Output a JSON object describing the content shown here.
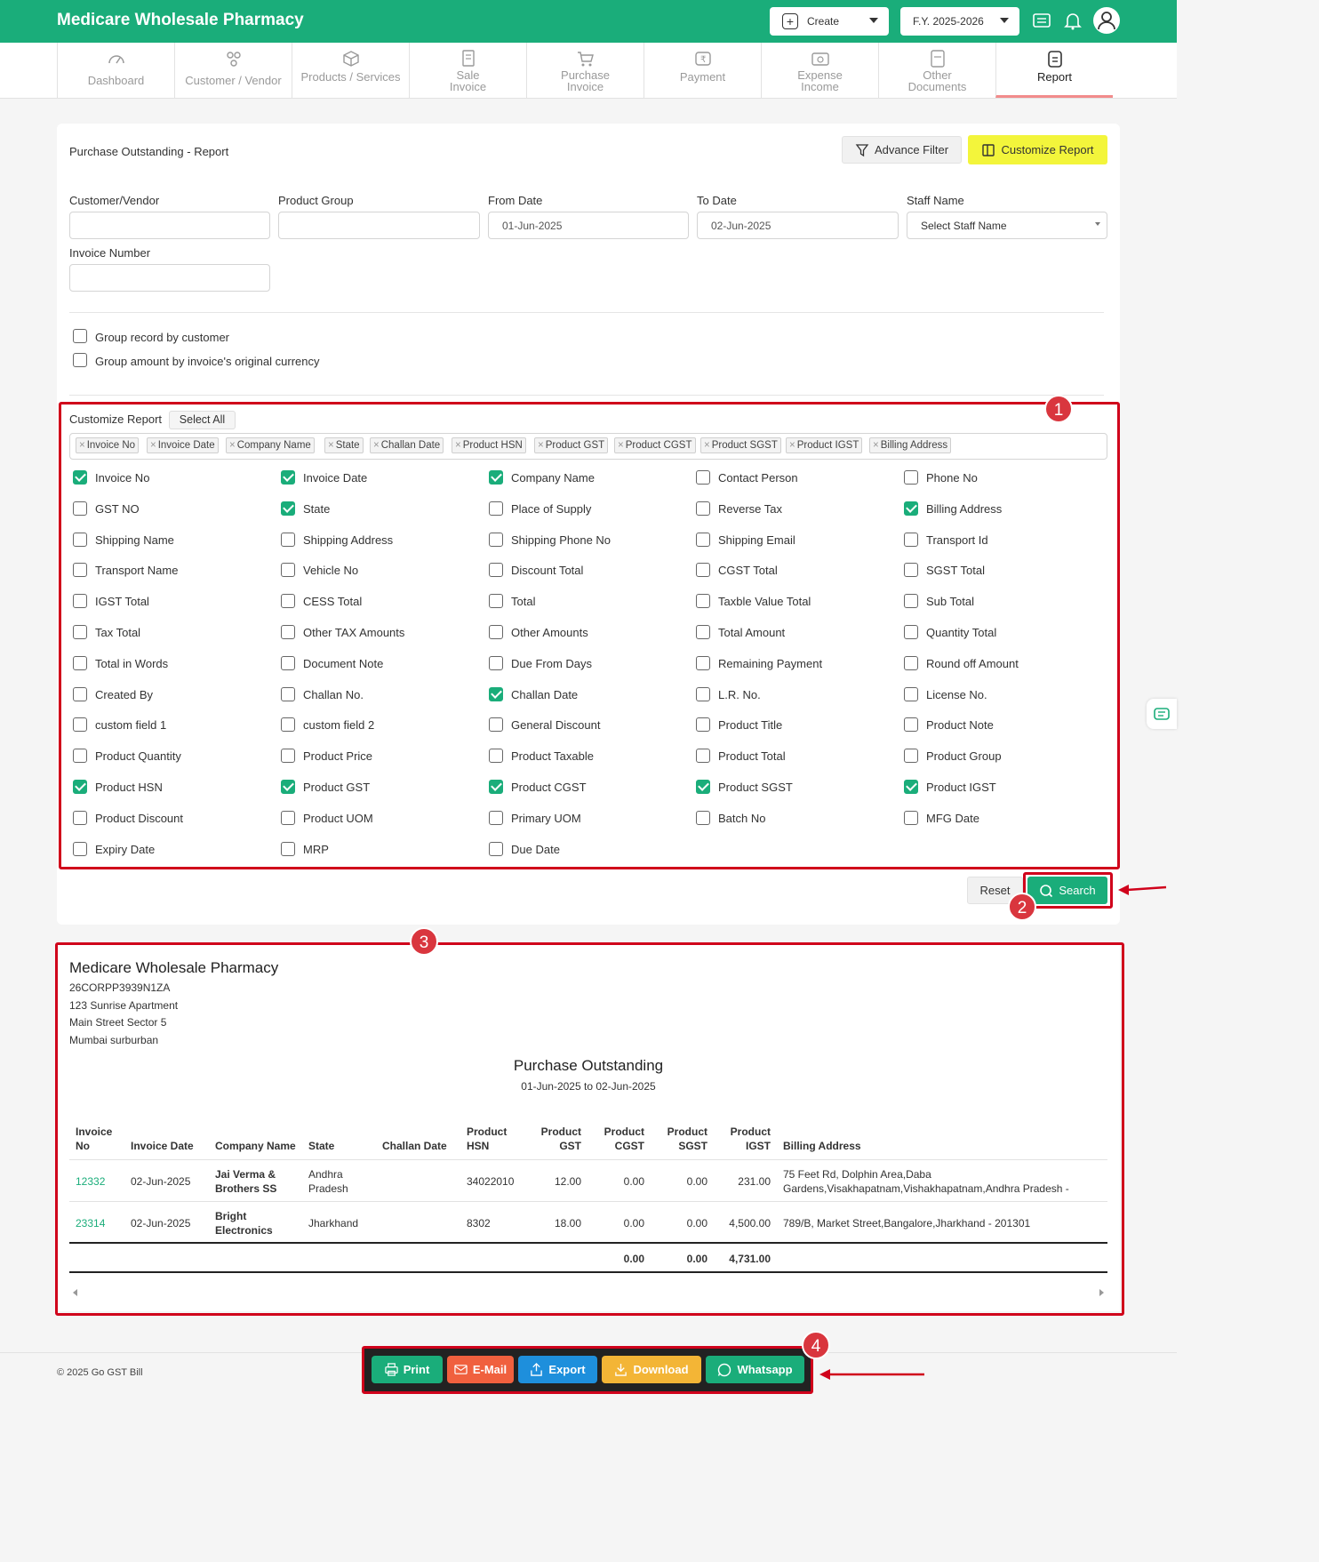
{
  "app": {
    "title": "Medicare Wholesale Pharmacy",
    "create_label": "Create",
    "fy_label": "F.Y. 2025-2026"
  },
  "nav": [
    {
      "label": "Dashboard",
      "icon": "gauge-icon"
    },
    {
      "label": "Customer / Vendor",
      "icon": "users-icon"
    },
    {
      "label": "Products / Services",
      "icon": "box-icon"
    },
    {
      "label": "Sale Invoice",
      "icon": "invoice-icon"
    },
    {
      "label": "Purchase Invoice",
      "icon": "cart-icon"
    },
    {
      "label": "Payment",
      "icon": "payment-icon"
    },
    {
      "label": "Expense Income",
      "icon": "expense-icon"
    },
    {
      "label": "Other Documents",
      "icon": "document-icon"
    },
    {
      "label": "Report",
      "icon": "report-icon"
    }
  ],
  "report": {
    "title": "Purchase Outstanding - Report",
    "advance_filter": "Advance Filter",
    "customize_report": "Customize Report"
  },
  "filters": {
    "customer_label": "Customer/Vendor",
    "customer_value": "",
    "product_group_label": "Product Group",
    "product_group_value": "",
    "from_label": "From Date",
    "from_value": "01-Jun-2025",
    "to_label": "To Date",
    "to_value": "02-Jun-2025",
    "staff_label": "Staff Name",
    "staff_value": "Select Staff Name",
    "invoice_label": "Invoice Number",
    "invoice_value": ""
  },
  "options": {
    "group_customer": "Group record by customer",
    "group_currency": "Group amount by invoice's original currency"
  },
  "customize": {
    "label": "Customize Report",
    "select_all": "Select All",
    "tags": [
      "Invoice No",
      "Invoice Date",
      "Company Name",
      "State",
      "Challan Date",
      "Product HSN",
      "Product GST",
      "Product CGST",
      "Product SGST",
      "Product IGST",
      "Billing Address"
    ],
    "fields": [
      {
        "label": "Invoice No",
        "checked": true
      },
      {
        "label": "Invoice Date",
        "checked": true
      },
      {
        "label": "Company Name",
        "checked": true
      },
      {
        "label": "Contact Person",
        "checked": false
      },
      {
        "label": "Phone No",
        "checked": false
      },
      {
        "label": "GST NO",
        "checked": false
      },
      {
        "label": "State",
        "checked": true
      },
      {
        "label": "Place of Supply",
        "checked": false
      },
      {
        "label": "Reverse Tax",
        "checked": false
      },
      {
        "label": "Billing Address",
        "checked": true
      },
      {
        "label": "Shipping Name",
        "checked": false
      },
      {
        "label": "Shipping Address",
        "checked": false
      },
      {
        "label": "Shipping Phone No",
        "checked": false
      },
      {
        "label": "Shipping Email",
        "checked": false
      },
      {
        "label": "Transport Id",
        "checked": false
      },
      {
        "label": "Transport Name",
        "checked": false
      },
      {
        "label": "Vehicle No",
        "checked": false
      },
      {
        "label": "Discount Total",
        "checked": false
      },
      {
        "label": "CGST Total",
        "checked": false
      },
      {
        "label": "SGST Total",
        "checked": false
      },
      {
        "label": "IGST Total",
        "checked": false
      },
      {
        "label": "CESS Total",
        "checked": false
      },
      {
        "label": "Total",
        "checked": false
      },
      {
        "label": "Taxble Value Total",
        "checked": false
      },
      {
        "label": "Sub Total",
        "checked": false
      },
      {
        "label": "Tax Total",
        "checked": false
      },
      {
        "label": "Other TAX Amounts",
        "checked": false
      },
      {
        "label": "Other Amounts",
        "checked": false
      },
      {
        "label": "Total Amount",
        "checked": false
      },
      {
        "label": "Quantity Total",
        "checked": false
      },
      {
        "label": "Total in Words",
        "checked": false
      },
      {
        "label": "Document Note",
        "checked": false
      },
      {
        "label": "Due From Days",
        "checked": false
      },
      {
        "label": "Remaining Payment",
        "checked": false
      },
      {
        "label": "Round off Amount",
        "checked": false
      },
      {
        "label": "Created By",
        "checked": false
      },
      {
        "label": "Challan No.",
        "checked": false
      },
      {
        "label": "Challan Date",
        "checked": true
      },
      {
        "label": "L.R. No.",
        "checked": false
      },
      {
        "label": "License No.",
        "checked": false
      },
      {
        "label": "custom field 1",
        "checked": false
      },
      {
        "label": "custom field 2",
        "checked": false
      },
      {
        "label": "General Discount",
        "checked": false
      },
      {
        "label": "Product Title",
        "checked": false
      },
      {
        "label": "Product Note",
        "checked": false
      },
      {
        "label": "Product Quantity",
        "checked": false
      },
      {
        "label": "Product Price",
        "checked": false
      },
      {
        "label": "Product Taxable",
        "checked": false
      },
      {
        "label": "Product Total",
        "checked": false
      },
      {
        "label": "Product Group",
        "checked": false
      },
      {
        "label": "Product HSN",
        "checked": true
      },
      {
        "label": "Product GST",
        "checked": true
      },
      {
        "label": "Product CGST",
        "checked": true
      },
      {
        "label": "Product SGST",
        "checked": true
      },
      {
        "label": "Product IGST",
        "checked": true
      },
      {
        "label": "Product Discount",
        "checked": false
      },
      {
        "label": "Product UOM",
        "checked": false
      },
      {
        "label": "Primary UOM",
        "checked": false
      },
      {
        "label": "Batch No",
        "checked": false
      },
      {
        "label": "MFG Date",
        "checked": false
      },
      {
        "label": "Expiry Date",
        "checked": false
      },
      {
        "label": "MRP",
        "checked": false
      },
      {
        "label": "Due Date",
        "checked": false
      }
    ]
  },
  "actions": {
    "reset": "Reset",
    "search": "Search"
  },
  "badges": [
    "1",
    "2",
    "3",
    "4"
  ],
  "company": {
    "name": "Medicare Wholesale Pharmacy",
    "gstin": "26CORPP3939N1ZA",
    "addr1": "123 Sunrise Apartment",
    "addr2": "Main Street Sector 5",
    "addr3": "Mumbai surburban"
  },
  "output": {
    "title": "Purchase Outstanding",
    "range": "01-Jun-2025 to 02-Jun-2025"
  },
  "table": {
    "headers": {
      "invoice_no_1": "Invoice",
      "invoice_no_2": "No",
      "invoice_date": "Invoice Date",
      "company": "Company Name",
      "state": "State",
      "challan": "Challan Date",
      "hsn_1": "Product",
      "hsn_2": "HSN",
      "gst_1": "Product",
      "gst_2": "GST",
      "cgst_1": "Product",
      "cgst_2": "CGST",
      "sgst_1": "Product",
      "sgst_2": "SGST",
      "igst_1": "Product",
      "igst_2": "IGST",
      "billing": "Billing Address"
    },
    "rows": [
      {
        "invoice_no": "12332",
        "invoice_date": "02-Jun-2025",
        "company_1": "Jai Verma &",
        "company_2": "Brothers SS",
        "state_1": "Andhra",
        "state_2": "Pradesh",
        "challan": "",
        "hsn": "34022010",
        "gst": "12.00",
        "cgst": "0.00",
        "sgst": "0.00",
        "igst": "231.00",
        "billing_1": "75 Feet Rd, Dolphin Area,Daba",
        "billing_2": "Gardens,Visakhapatnam,Vishakhapatnam,Andhra Pradesh -"
      },
      {
        "invoice_no": "23314",
        "invoice_date": "02-Jun-2025",
        "company_1": "Bright",
        "company_2": "Electronics",
        "state_1": "Jharkhand",
        "state_2": "",
        "challan": "",
        "hsn": "8302",
        "gst": "18.00",
        "cgst": "0.00",
        "sgst": "0.00",
        "igst": "4,500.00",
        "billing_1": "789/B, Market Street,Bangalore,Jharkhand - 201301",
        "billing_2": ""
      }
    ],
    "totals": {
      "cgst": "0.00",
      "sgst": "0.00",
      "igst": "4,731.00"
    }
  },
  "footer": {
    "copyright": "© 2025 Go GST Bill",
    "print": "Print",
    "email": "E-Mail",
    "export": "Export",
    "download": "Download",
    "whatsapp": "Whatsapp"
  },
  "colors": {
    "brand": "#1aad7a",
    "highlight": "#f3f53b",
    "annotation": "#d0021b"
  }
}
